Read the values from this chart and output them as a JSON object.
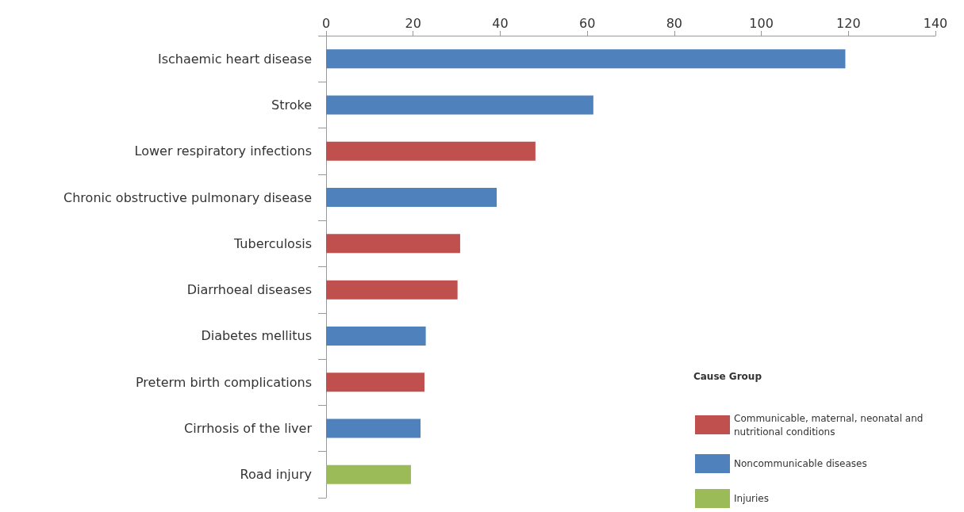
{
  "chart_data": {
    "type": "bar",
    "orientation": "horizontal",
    "legend_title": "Cause Group",
    "legend": "bottom right",
    "grid": false,
    "categories": [
      "Ischaemic heart disease",
      "Stroke",
      "Lower respiratory infections",
      "Chronic obstructive pulmonary disease",
      "Tuberculosis",
      "Diarrhoeal diseases",
      "Diabetes mellitus",
      "Preterm birth complications",
      "Cirrhosis of the liver",
      "Road injury"
    ],
    "series": [
      {
        "name": "Communicable, maternal, neonatal and nutritional conditions",
        "color": "#c0504d",
        "values": [
          null,
          null,
          48.1,
          null,
          30.8,
          30.2,
          null,
          22.6,
          null,
          null
        ]
      },
      {
        "name": "Noncommunicable diseases",
        "color": "#4f81bd",
        "values": [
          119.3,
          61.4,
          null,
          39.2,
          null,
          null,
          22.9,
          null,
          21.7,
          null
        ]
      },
      {
        "name": "Injuries",
        "color": "#9bbb59",
        "values": [
          null,
          null,
          null,
          null,
          null,
          null,
          null,
          null,
          null,
          19.5
        ]
      }
    ],
    "xlim": [
      0,
      140
    ],
    "xticks": [
      0,
      20,
      40,
      60,
      80,
      100,
      120,
      140
    ]
  }
}
